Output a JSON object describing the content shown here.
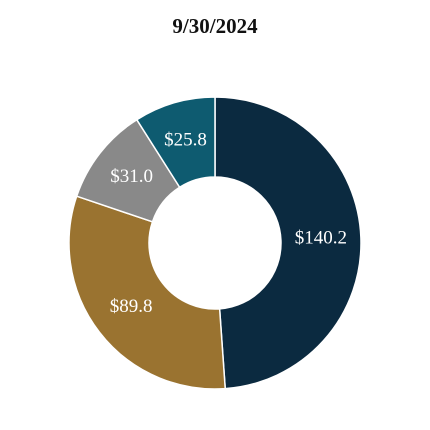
{
  "chart_data": {
    "type": "donut",
    "title": "9/30/2024",
    "categories": [
      null,
      null,
      null,
      null
    ],
    "values": [
      140.2,
      89.8,
      31.0,
      25.8
    ],
    "value_labels": [
      "$140.2",
      "$89.8",
      "$31.0",
      "$25.8"
    ],
    "colors": [
      "#0b2a40",
      "#9a7330",
      "#898989",
      "#0e5b70"
    ]
  }
}
